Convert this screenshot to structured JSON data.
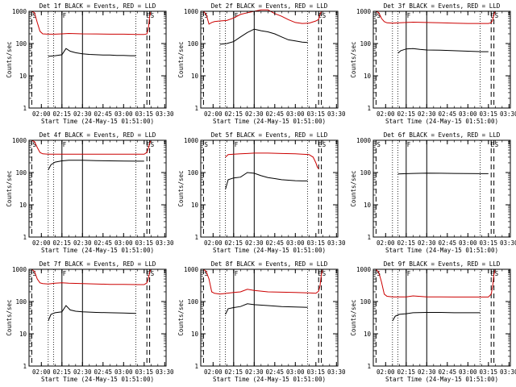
{
  "figure": {
    "xlabel": "Start Time (24-May-15 01:51:00)",
    "ylabel": "Counts/sec",
    "x_ticks": [
      "02:00",
      "02:15",
      "02:30",
      "02:45",
      "03:00",
      "03:15",
      "03:30"
    ],
    "y_ticks": [
      "1",
      "10",
      "100",
      "1000"
    ],
    "marker_letters": {
      "start": "S",
      "flare": "F",
      "end": "E"
    }
  },
  "chart_data": [
    {
      "type": "line",
      "title": "Det 1f BLACK = Events, RED = LLD",
      "xlabel": "Start Time (24-May-15 01:51:00)",
      "ylabel": "Counts/sec",
      "xlim": [
        "01:51",
        "03:31"
      ],
      "ylim": [
        1,
        1000
      ],
      "y_scale": "log",
      "series": [
        {
          "color": "#000000",
          "x": [
            "02:05",
            "02:10",
            "02:15",
            "02:18",
            "02:21",
            "02:25",
            "02:30",
            "02:35",
            "02:40",
            "02:45",
            "02:50",
            "02:55",
            "03:00",
            "03:05",
            "03:09"
          ],
          "values": [
            40,
            42,
            45,
            70,
            58,
            52,
            48,
            46,
            45,
            44,
            44,
            43,
            43,
            42,
            42
          ]
        },
        {
          "color": "#cc0000",
          "x": [
            "01:53",
            "01:55",
            "01:57",
            "01:59",
            "02:01",
            "02:05",
            "02:10",
            "02:15",
            "02:20",
            "02:30",
            "02:40",
            "02:50",
            "03:00",
            "03:10",
            "03:15",
            "03:17",
            "03:18",
            "03:19",
            "03:20",
            "03:21"
          ],
          "values": [
            1000,
            900,
            450,
            240,
            200,
            195,
            195,
            200,
            205,
            200,
            198,
            195,
            195,
            192,
            190,
            200,
            280,
            700,
            1000,
            1000
          ]
        }
      ]
    },
    {
      "type": "line",
      "title": "Det 2f BLACK = Events, RED = LLD",
      "xlabel": "Start Time (24-May-15 01:51:00)",
      "ylabel": "Counts/sec",
      "xlim": [
        "01:51",
        "03:31"
      ],
      "ylim": [
        1,
        1000
      ],
      "y_scale": "log",
      "series": [
        {
          "color": "#000000",
          "x": [
            "02:05",
            "02:10",
            "02:15",
            "02:20",
            "02:25",
            "02:30",
            "02:35",
            "02:40",
            "02:45",
            "02:50",
            "02:55",
            "03:00",
            "03:05",
            "03:09"
          ],
          "values": [
            95,
            100,
            115,
            160,
            220,
            280,
            250,
            230,
            200,
            160,
            130,
            120,
            110,
            108
          ]
        },
        {
          "color": "#cc0000",
          "x": [
            "01:53",
            "01:55",
            "01:57",
            "01:59",
            "02:01",
            "02:05",
            "02:10",
            "02:15",
            "02:20",
            "02:25",
            "02:30",
            "02:35",
            "02:40",
            "02:45",
            "02:50",
            "02:55",
            "03:00",
            "03:05",
            "03:10",
            "03:15",
            "03:17",
            "03:18",
            "03:19",
            "03:20"
          ],
          "values": [
            1000,
            800,
            400,
            450,
            480,
            500,
            520,
            620,
            800,
            900,
            1000,
            1100,
            1100,
            850,
            700,
            550,
            450,
            420,
            430,
            500,
            560,
            800,
            1000,
            1000
          ]
        }
      ]
    },
    {
      "type": "line",
      "title": "Det 3f BLACK = Events, RED = LLD",
      "xlabel": "Start Time (24-May-15 01:51:00)",
      "ylabel": "Counts/sec",
      "xlim": [
        "01:51",
        "03:31"
      ],
      "ylim": [
        1,
        1000
      ],
      "y_scale": "log",
      "series": [
        {
          "color": "#000000",
          "x": [
            "02:09",
            "02:11",
            "02:15",
            "02:20",
            "02:25",
            "02:30",
            "02:40",
            "02:50",
            "03:00",
            "03:10",
            "03:15"
          ],
          "values": [
            50,
            60,
            68,
            70,
            66,
            63,
            62,
            60,
            58,
            56,
            56
          ]
        },
        {
          "color": "#cc0000",
          "x": [
            "01:53",
            "01:55",
            "01:57",
            "01:59",
            "02:01",
            "02:05",
            "02:10",
            "02:15",
            "02:20",
            "02:30",
            "02:40",
            "02:50",
            "03:00",
            "03:10",
            "03:15",
            "03:17",
            "03:18",
            "03:19",
            "03:20",
            "03:21"
          ],
          "values": [
            1000,
            900,
            600,
            480,
            440,
            430,
            440,
            450,
            460,
            450,
            440,
            430,
            420,
            420,
            420,
            440,
            520,
            800,
            1000,
            1000
          ]
        }
      ]
    },
    {
      "type": "line",
      "title": "Det 4f BLACK = Events, RED = LLD",
      "xlabel": "Start Time (24-May-15 01:51:00)",
      "ylabel": "Counts/sec",
      "xlim": [
        "01:51",
        "03:31"
      ],
      "ylim": [
        1,
        1000
      ],
      "y_scale": "log",
      "series": [
        {
          "color": "#000000",
          "x": [
            "02:05",
            "02:07",
            "02:10",
            "02:15",
            "02:20",
            "02:30",
            "02:40",
            "02:50",
            "03:00",
            "03:10",
            "03:15"
          ],
          "values": [
            120,
            175,
            210,
            230,
            240,
            240,
            235,
            230,
            228,
            225,
            225
          ]
        },
        {
          "color": "#cc0000",
          "x": [
            "01:53",
            "01:55",
            "01:57",
            "01:59",
            "02:01",
            "02:05",
            "02:10",
            "02:20",
            "02:30",
            "02:40",
            "02:50",
            "03:00",
            "03:10",
            "03:15",
            "03:17",
            "03:18",
            "03:19",
            "03:20",
            "03:21"
          ],
          "values": [
            1000,
            900,
            600,
            420,
            380,
            370,
            370,
            370,
            370,
            370,
            370,
            370,
            370,
            370,
            420,
            550,
            800,
            1000,
            1000
          ]
        }
      ]
    },
    {
      "type": "line",
      "title": "Det 5f BLACK = Events, RED = LLD",
      "xlabel": "Start Time (24-May-15 01:51:00)",
      "ylabel": "Counts/sec",
      "xlim": [
        "01:51",
        "03:31"
      ],
      "ylim": [
        1,
        1000
      ],
      "y_scale": "log",
      "series": [
        {
          "color": "#000000",
          "x": [
            "02:09",
            "02:11",
            "02:15",
            "02:20",
            "02:25",
            "02:30",
            "02:35",
            "02:40",
            "02:45",
            "02:50",
            "02:55",
            "03:00",
            "03:05",
            "03:09"
          ],
          "values": [
            30,
            60,
            68,
            72,
            100,
            95,
            80,
            70,
            65,
            60,
            58,
            56,
            55,
            55
          ]
        },
        {
          "color": "#cc0000",
          "x": [
            "02:09",
            "02:11",
            "02:15",
            "02:20",
            "02:25",
            "02:30",
            "02:40",
            "02:50",
            "03:00",
            "03:05",
            "03:10",
            "03:13",
            "03:15",
            "03:16",
            "03:17"
          ],
          "values": [
            300,
            360,
            370,
            380,
            390,
            400,
            400,
            390,
            380,
            370,
            360,
            300,
            200,
            150,
            130
          ]
        }
      ]
    },
    {
      "type": "line",
      "title": "Det 6f BLACK = Events, RED = LLD",
      "xlabel": "Start Time (24-May-15 01:51:00)",
      "ylabel": "Counts/sec",
      "xlim": [
        "01:51",
        "03:31"
      ],
      "ylim": [
        1,
        1000
      ],
      "y_scale": "log",
      "series": [
        {
          "color": "#000000",
          "x": [
            "02:09",
            "02:15",
            "02:20",
            "02:30",
            "02:40",
            "02:50",
            "03:00",
            "03:10",
            "03:15"
          ],
          "values": [
            90,
            92,
            94,
            96,
            95,
            94,
            93,
            92,
            92
          ]
        }
      ]
    },
    {
      "type": "line",
      "title": "Det 7f BLACK = Events, RED = LLD",
      "xlabel": "Start Time (24-May-15 01:51:00)",
      "ylabel": "Counts/sec",
      "xlim": [
        "01:51",
        "03:31"
      ],
      "ylim": [
        1,
        1000
      ],
      "y_scale": "log",
      "series": [
        {
          "color": "#000000",
          "x": [
            "02:05",
            "02:07",
            "02:10",
            "02:15",
            "02:18",
            "02:21",
            "02:25",
            "02:30",
            "02:40",
            "02:50",
            "03:00",
            "03:09"
          ],
          "values": [
            25,
            40,
            45,
            48,
            75,
            55,
            50,
            48,
            46,
            45,
            44,
            43
          ]
        },
        {
          "color": "#cc0000",
          "x": [
            "01:53",
            "01:55",
            "01:57",
            "01:59",
            "02:01",
            "02:05",
            "02:10",
            "02:15",
            "02:20",
            "02:30",
            "02:40",
            "02:50",
            "03:00",
            "03:10",
            "03:15",
            "03:17",
            "03:18",
            "03:19",
            "03:20",
            "03:21"
          ],
          "values": [
            1000,
            850,
            500,
            380,
            360,
            350,
            370,
            380,
            370,
            360,
            350,
            340,
            340,
            335,
            335,
            380,
            500,
            800,
            1000,
            1000
          ]
        }
      ]
    },
    {
      "type": "line",
      "title": "Det 8f BLACK = Events, RED = LLD",
      "xlabel": "Start Time (24-May-15 01:51:00)",
      "ylabel": "Counts/sec",
      "xlim": [
        "01:51",
        "03:31"
      ],
      "ylim": [
        1,
        1000
      ],
      "y_scale": "log",
      "series": [
        {
          "color": "#000000",
          "x": [
            "02:09",
            "02:11",
            "02:15",
            "02:20",
            "02:25",
            "02:30",
            "02:40",
            "02:50",
            "03:00",
            "03:05",
            "03:09"
          ],
          "values": [
            40,
            60,
            65,
            70,
            85,
            80,
            75,
            70,
            68,
            67,
            66
          ]
        },
        {
          "color": "#cc0000",
          "x": [
            "01:53",
            "01:55",
            "01:57",
            "01:59",
            "02:01",
            "02:05",
            "02:10",
            "02:15",
            "02:20",
            "02:25",
            "02:30",
            "02:40",
            "02:50",
            "03:00",
            "03:10",
            "03:15",
            "03:17",
            "03:18",
            "03:19",
            "03:20",
            "03:21"
          ],
          "values": [
            1000,
            850,
            500,
            200,
            180,
            170,
            180,
            190,
            200,
            240,
            220,
            200,
            195,
            190,
            185,
            180,
            210,
            300,
            700,
            1000,
            1000
          ]
        }
      ]
    },
    {
      "type": "line",
      "title": "Det 9f BLACK = Events, RED = LLD",
      "xlabel": "Start Time (24-May-15 01:51:00)",
      "ylabel": "Counts/sec",
      "xlim": [
        "01:51",
        "03:31"
      ],
      "ylim": [
        1,
        1000
      ],
      "y_scale": "log",
      "series": [
        {
          "color": "#000000",
          "x": [
            "02:05",
            "02:07",
            "02:10",
            "02:15",
            "02:20",
            "02:30",
            "02:40",
            "02:50",
            "03:00",
            "03:09"
          ],
          "values": [
            25,
            35,
            40,
            42,
            45,
            46,
            46,
            45,
            45,
            45
          ]
        },
        {
          "color": "#cc0000",
          "x": [
            "01:53",
            "01:55",
            "01:57",
            "01:59",
            "02:01",
            "02:05",
            "02:10",
            "02:15",
            "02:20",
            "02:30",
            "02:40",
            "02:50",
            "03:00",
            "03:10",
            "03:15",
            "03:17",
            "03:18",
            "03:19",
            "03:20",
            "03:21"
          ],
          "values": [
            1000,
            800,
            400,
            170,
            145,
            140,
            140,
            140,
            150,
            140,
            140,
            138,
            138,
            138,
            138,
            170,
            280,
            700,
            1000,
            1000
          ]
        }
      ]
    }
  ]
}
